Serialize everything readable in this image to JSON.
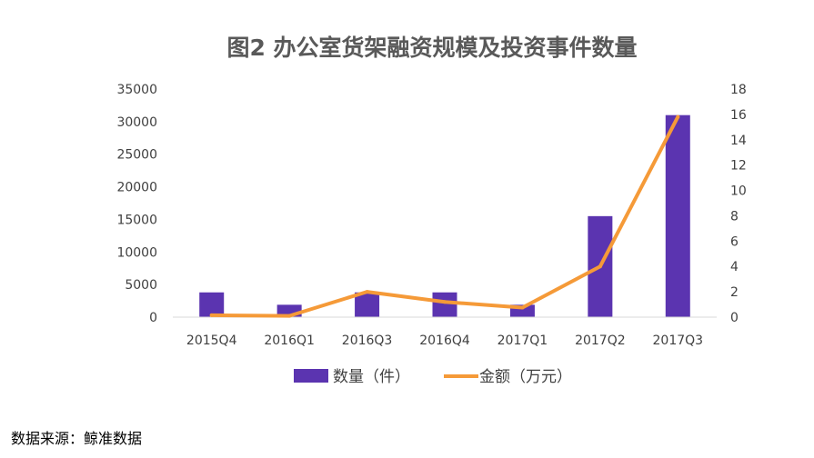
{
  "source_note": "数据来源：鲸准数据",
  "chart_data": {
    "type": "bar",
    "title": "图2 办公室货架融资规模及投资事件数量",
    "categories": [
      "2015Q4",
      "2016Q1",
      "2016Q3",
      "2016Q4",
      "2017Q1",
      "2017Q2",
      "2017Q3"
    ],
    "series": [
      {
        "name": "数量（件）",
        "type": "bar",
        "axis": "left",
        "color": "#5b34b0",
        "values": [
          3800,
          1900,
          3800,
          3800,
          1900,
          15500,
          31000
        ]
      },
      {
        "name": "金额（万元）",
        "type": "line",
        "axis": "right",
        "color": "#f59a38",
        "values": [
          0.15,
          0.1,
          2.0,
          1.2,
          0.75,
          4.0,
          15.8
        ]
      }
    ],
    "ylim_left": [
      0,
      35000
    ],
    "yticks_left": [
      "35000",
      "30000",
      "25000",
      "20000",
      "15000",
      "10000",
      "5000",
      "0"
    ],
    "ylim_right": [
      0,
      18
    ],
    "yticks_right": [
      "18",
      "16",
      "14",
      "12",
      "10",
      "8",
      "6",
      "4",
      "2",
      "0"
    ],
    "legend_position": "bottom",
    "grid": false
  }
}
